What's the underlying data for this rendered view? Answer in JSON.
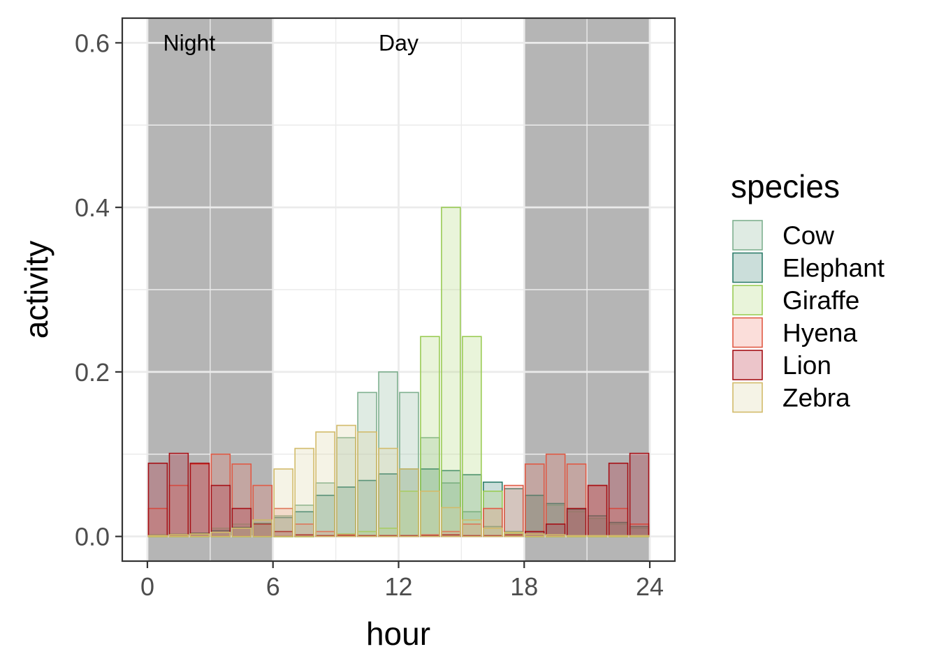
{
  "chart_data": {
    "type": "bar",
    "xlabel": "hour",
    "ylabel": "activity",
    "xlim": [
      -1.2,
      25.2
    ],
    "ylim": [
      -0.03,
      0.63
    ],
    "x_ticks": [
      0,
      6,
      12,
      18,
      24
    ],
    "x_tick_labels": [
      "0",
      "6",
      "12",
      "18",
      "24"
    ],
    "y_ticks": [
      0.0,
      0.2,
      0.4,
      0.6
    ],
    "y_tick_labels": [
      "0.0",
      "0.2",
      "0.4",
      "0.6"
    ],
    "grid": true,
    "bar_width": 0.9,
    "shaded_regions": [
      {
        "x0": 0,
        "x1": 6,
        "color": "#b5b5b5"
      },
      {
        "x0": 18,
        "x1": 24,
        "color": "#b5b5b5"
      }
    ],
    "annotations": [
      {
        "text": "Night",
        "x": 2,
        "y": 0.6
      },
      {
        "text": "Day",
        "x": 12,
        "y": 0.6
      }
    ],
    "legend": {
      "title": "species",
      "position": "right"
    },
    "x": [
      0.5,
      1.5,
      2.5,
      3.5,
      4.5,
      5.5,
      6.5,
      7.5,
      8.5,
      9.5,
      10.5,
      11.5,
      12.5,
      13.5,
      14.5,
      15.5,
      16.5,
      17.5,
      18.5,
      19.5,
      20.5,
      21.5,
      22.5,
      23.5
    ],
    "series": [
      {
        "name": "Cow",
        "fill": "#7fb08f",
        "stroke": "#7fb08f",
        "values": [
          0.002,
          0.003,
          0.004,
          0.01,
          0.015,
          0.02,
          0.025,
          0.038,
          0.065,
          0.12,
          0.175,
          0.2,
          0.175,
          0.12,
          0.065,
          0.03,
          0.012,
          0.006,
          0.05,
          0.038,
          0.03,
          0.022,
          0.015,
          0.01
        ]
      },
      {
        "name": "Elephant",
        "fill": "#2e7d6b",
        "stroke": "#2e7d6b",
        "values": [
          0.001,
          0.002,
          0.004,
          0.007,
          0.011,
          0.016,
          0.023,
          0.03,
          0.05,
          0.06,
          0.068,
          0.076,
          0.082,
          0.082,
          0.08,
          0.075,
          0.066,
          0.058,
          0.05,
          0.04,
          0.033,
          0.025,
          0.017,
          0.012
        ]
      },
      {
        "name": "Giraffe",
        "fill": "#a6d36a",
        "stroke": "#9acb55",
        "values": [
          0.0,
          0.0,
          0.0,
          0.0,
          0.0,
          0.0,
          0.0,
          0.0,
          0.001,
          0.003,
          0.006,
          0.01,
          0.055,
          0.243,
          0.4,
          0.243,
          0.055,
          0.004,
          0.0,
          0.0,
          0.0,
          0.0,
          0.0,
          0.0
        ]
      },
      {
        "name": "Hyena",
        "fill": "#ef7a6b",
        "stroke": "#e05a45",
        "values": [
          0.034,
          0.062,
          0.088,
          0.1,
          0.088,
          0.062,
          0.034,
          0.015,
          0.006,
          0.002,
          0.001,
          0.001,
          0.001,
          0.002,
          0.006,
          0.015,
          0.034,
          0.062,
          0.088,
          0.1,
          0.088,
          0.062,
          0.034,
          0.015
        ]
      },
      {
        "name": "Lion",
        "fill": "#b2182b",
        "stroke": "#a50f15",
        "values": [
          0.089,
          0.101,
          0.089,
          0.062,
          0.034,
          0.015,
          0.006,
          0.002,
          0.001,
          0.001,
          0.001,
          0.001,
          0.001,
          0.001,
          0.002,
          0.001,
          0.001,
          0.002,
          0.006,
          0.015,
          0.034,
          0.062,
          0.089,
          0.101
        ]
      },
      {
        "name": "Zebra",
        "fill": "#d9cf9c",
        "stroke": "#d2bb6a",
        "values": [
          0.001,
          0.002,
          0.003,
          0.005,
          0.01,
          0.02,
          0.082,
          0.107,
          0.127,
          0.135,
          0.127,
          0.107,
          0.082,
          0.055,
          0.035,
          0.02,
          0.01,
          0.005,
          0.003,
          0.002,
          0.001,
          0.001,
          0.001,
          0.001
        ]
      }
    ]
  }
}
